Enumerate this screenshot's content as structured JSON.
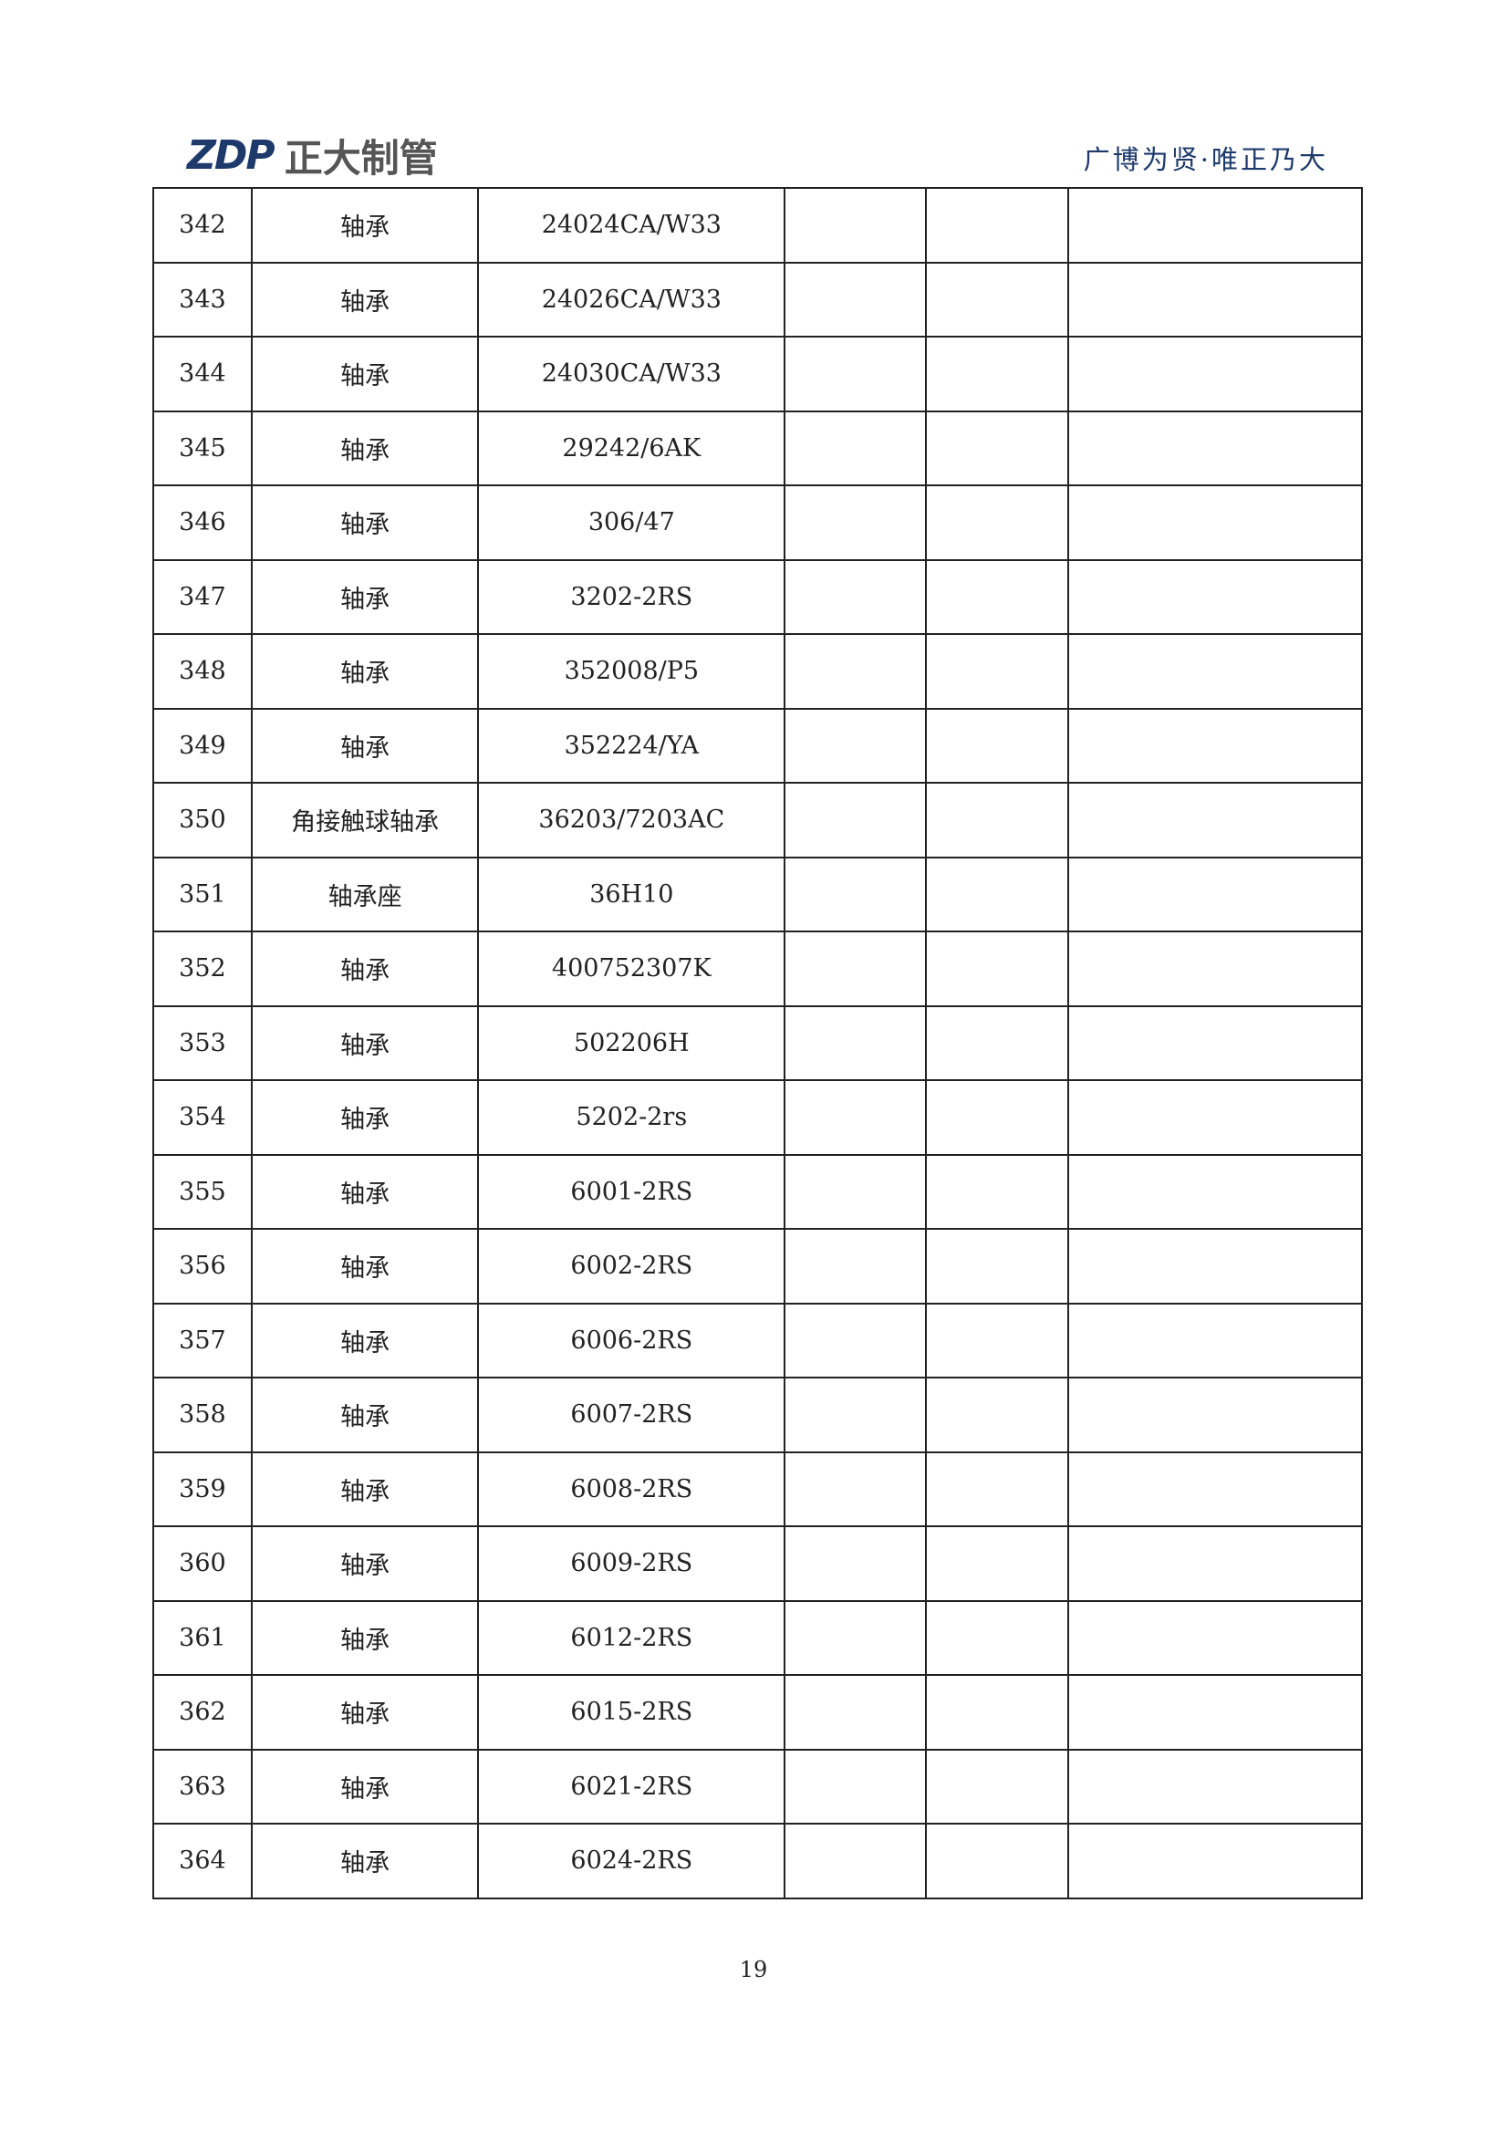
{
  "header": {
    "logo_mark": "ZDP",
    "logo_text": "正大制管",
    "slogan": "广博为贤·唯正乃大"
  },
  "rows": [
    {
      "no": "342",
      "name": "轴承",
      "model": "24024CA/W33"
    },
    {
      "no": "343",
      "name": "轴承",
      "model": "24026CA/W33"
    },
    {
      "no": "344",
      "name": "轴承",
      "model": "24030CA/W33"
    },
    {
      "no": "345",
      "name": "轴承",
      "model": "29242/6AK"
    },
    {
      "no": "346",
      "name": "轴承",
      "model": "306/47"
    },
    {
      "no": "347",
      "name": "轴承",
      "model": "3202-2RS"
    },
    {
      "no": "348",
      "name": "轴承",
      "model": "352008/P5"
    },
    {
      "no": "349",
      "name": "轴承",
      "model": "352224/YA"
    },
    {
      "no": "350",
      "name": "角接触球轴承",
      "model": "36203/7203AC"
    },
    {
      "no": "351",
      "name": "轴承座",
      "model": "36H10"
    },
    {
      "no": "352",
      "name": "轴承",
      "model": "400752307K"
    },
    {
      "no": "353",
      "name": "轴承",
      "model": "502206H"
    },
    {
      "no": "354",
      "name": "轴承",
      "model": "5202-2rs"
    },
    {
      "no": "355",
      "name": "轴承",
      "model": "6001-2RS"
    },
    {
      "no": "356",
      "name": "轴承",
      "model": "6002-2RS"
    },
    {
      "no": "357",
      "name": "轴承",
      "model": "6006-2RS"
    },
    {
      "no": "358",
      "name": "轴承",
      "model": "6007-2RS"
    },
    {
      "no": "359",
      "name": "轴承",
      "model": "6008-2RS"
    },
    {
      "no": "360",
      "name": "轴承",
      "model": "6009-2RS"
    },
    {
      "no": "361",
      "name": "轴承",
      "model": "6012-2RS"
    },
    {
      "no": "362",
      "name": "轴承",
      "model": "6015-2RS"
    },
    {
      "no": "363",
      "name": "轴承",
      "model": "6021-2RS"
    },
    {
      "no": "364",
      "name": "轴承",
      "model": "6024-2RS"
    }
  ],
  "footer": {
    "page_number": "19"
  }
}
